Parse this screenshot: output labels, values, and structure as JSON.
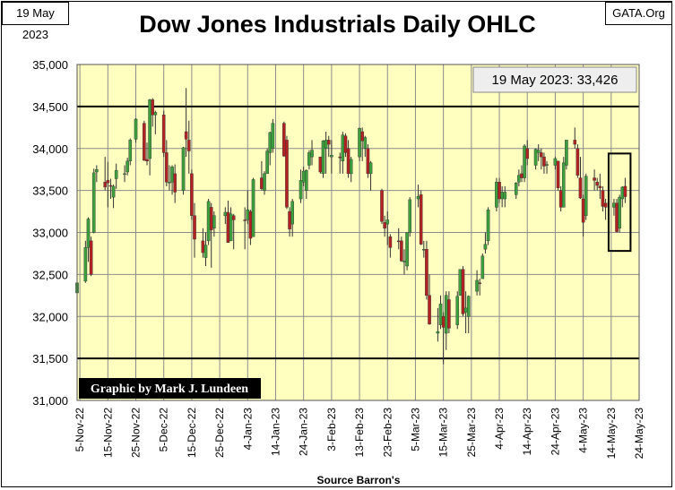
{
  "header": {
    "date_label": "19 May 2023",
    "site_label": "GATA.Org",
    "title": "Dow Jones Industrials Daily OHLC"
  },
  "chart_data": {
    "type": "ohlc",
    "title": "Dow Jones Industrials Daily OHLC",
    "xlabel": "Source Barron's",
    "ylabel": "",
    "ylim": [
      31000,
      35000
    ],
    "y_ticks": [
      31000,
      31500,
      32000,
      32500,
      33000,
      33500,
      34000,
      34500,
      35000
    ],
    "y_tick_labels": [
      "31,000",
      "31,500",
      "32,000",
      "32,500",
      "33,000",
      "33,500",
      "34,000",
      "34,500",
      "35,000"
    ],
    "x_ticks": [
      "5-Nov-22",
      "15-Nov-22",
      "25-Nov-22",
      "5-Dec-22",
      "15-Dec-22",
      "25-Dec-22",
      "4-Jan-23",
      "14-Jan-23",
      "24-Jan-23",
      "3-Feb-23",
      "13-Feb-23",
      "23-Feb-23",
      "5-Mar-23",
      "15-Mar-23",
      "25-Mar-23",
      "4-Apr-23",
      "14-Apr-23",
      "24-Apr-23",
      "4-May-23",
      "14-May-23",
      "24-May-23"
    ],
    "x_start": "2022-11-04",
    "x_end": "2023-05-24",
    "grid": true,
    "colors": {
      "up": "#3c9e3c",
      "down": "#b22222",
      "background": "#ffffc0",
      "grid": "#8c8c8c",
      "reference": "#000000"
    },
    "reference_lines": [
      34500,
      31500
    ],
    "annotation": {
      "text": "19 May 2023:  33,426",
      "position": "top-right"
    },
    "credit": "Graphic by Mark J. Lundeen",
    "highlight_range": {
      "start": "2023-05-15",
      "end": "2023-05-19",
      "low": 32780,
      "high": 33940
    },
    "candles": [
      {
        "d": "2022-11-04",
        "o": 32280,
        "h": 32500,
        "l": 32150,
        "c": 32400
      },
      {
        "d": "2022-11-07",
        "o": 32420,
        "h": 32900,
        "l": 32400,
        "c": 32820
      },
      {
        "d": "2022-11-08",
        "o": 32820,
        "h": 33180,
        "l": 32650,
        "c": 33160
      },
      {
        "d": "2022-11-09",
        "o": 32900,
        "h": 32950,
        "l": 32480,
        "c": 32500
      },
      {
        "d": "2022-11-10",
        "o": 33000,
        "h": 33760,
        "l": 32990,
        "c": 33710
      },
      {
        "d": "2022-11-11",
        "o": 33720,
        "h": 33800,
        "l": 33600,
        "c": 33750
      },
      {
        "d": "2022-11-14",
        "o": 33600,
        "h": 33900,
        "l": 33500,
        "c": 33540
      },
      {
        "d": "2022-11-15",
        "o": 33620,
        "h": 33840,
        "l": 33300,
        "c": 33590
      },
      {
        "d": "2022-11-16",
        "o": 33560,
        "h": 33640,
        "l": 33400,
        "c": 33550
      },
      {
        "d": "2022-11-17",
        "o": 33420,
        "h": 33570,
        "l": 33290,
        "c": 33550
      },
      {
        "d": "2022-11-18",
        "o": 33640,
        "h": 33820,
        "l": 33520,
        "c": 33740
      },
      {
        "d": "2022-11-21",
        "o": 33700,
        "h": 33800,
        "l": 33600,
        "c": 33700
      },
      {
        "d": "2022-11-22",
        "o": 33720,
        "h": 33890,
        "l": 33680,
        "c": 33850
      },
      {
        "d": "2022-11-23",
        "o": 33850,
        "h": 34120,
        "l": 33800,
        "c": 34100
      },
      {
        "d": "2022-11-25",
        "o": 34110,
        "h": 34360,
        "l": 34070,
        "c": 34350
      },
      {
        "d": "2022-11-28",
        "o": 34300,
        "h": 34330,
        "l": 33850,
        "c": 33860
      },
      {
        "d": "2022-11-29",
        "o": 33870,
        "h": 34070,
        "l": 33800,
        "c": 33850
      },
      {
        "d": "2022-11-30",
        "o": 33880,
        "h": 34590,
        "l": 33680,
        "c": 34580
      },
      {
        "d": "2022-12-01",
        "o": 34580,
        "h": 34600,
        "l": 34260,
        "c": 34400
      },
      {
        "d": "2022-12-02",
        "o": 34400,
        "h": 34450,
        "l": 34170,
        "c": 34430
      },
      {
        "d": "2022-12-05",
        "o": 34400,
        "h": 34450,
        "l": 33900,
        "c": 33950
      },
      {
        "d": "2022-12-06",
        "o": 33950,
        "h": 34100,
        "l": 33550,
        "c": 33600
      },
      {
        "d": "2022-12-07",
        "o": 33600,
        "h": 33800,
        "l": 33500,
        "c": 33600
      },
      {
        "d": "2022-12-08",
        "o": 33600,
        "h": 33800,
        "l": 33450,
        "c": 33780
      },
      {
        "d": "2022-12-09",
        "o": 33700,
        "h": 33810,
        "l": 33350,
        "c": 33480
      },
      {
        "d": "2022-12-12",
        "o": 33500,
        "h": 34020,
        "l": 33450,
        "c": 34010
      },
      {
        "d": "2022-12-13",
        "o": 34200,
        "h": 34720,
        "l": 33900,
        "c": 34110
      },
      {
        "d": "2022-12-14",
        "o": 34100,
        "h": 34330,
        "l": 33700,
        "c": 33970
      },
      {
        "d": "2022-12-15",
        "o": 33700,
        "h": 33750,
        "l": 33150,
        "c": 33200
      },
      {
        "d": "2022-12-16",
        "o": 33200,
        "h": 33350,
        "l": 32700,
        "c": 32920
      },
      {
        "d": "2022-12-19",
        "o": 32900,
        "h": 33050,
        "l": 32700,
        "c": 32760
      },
      {
        "d": "2022-12-20",
        "o": 32700,
        "h": 33000,
        "l": 32600,
        "c": 32850
      },
      {
        "d": "2022-12-21",
        "o": 32900,
        "h": 33400,
        "l": 32850,
        "c": 33370
      },
      {
        "d": "2022-12-22",
        "o": 33300,
        "h": 33350,
        "l": 32580,
        "c": 33030
      },
      {
        "d": "2022-12-23",
        "o": 33050,
        "h": 33250,
        "l": 32950,
        "c": 33200
      },
      {
        "d": "2022-12-27",
        "o": 33200,
        "h": 33300,
        "l": 33100,
        "c": 33240
      },
      {
        "d": "2022-12-28",
        "o": 33240,
        "h": 33380,
        "l": 32880,
        "c": 32880
      },
      {
        "d": "2022-12-29",
        "o": 32900,
        "h": 33300,
        "l": 32900,
        "c": 33220
      },
      {
        "d": "2022-12-30",
        "o": 33200,
        "h": 33220,
        "l": 32800,
        "c": 33150
      },
      {
        "d": "2023-01-03",
        "o": 33150,
        "h": 33300,
        "l": 32800,
        "c": 33140
      },
      {
        "d": "2023-01-04",
        "o": 33150,
        "h": 33500,
        "l": 33100,
        "c": 33270
      },
      {
        "d": "2023-01-05",
        "o": 33250,
        "h": 33270,
        "l": 32850,
        "c": 32930
      },
      {
        "d": "2023-01-06",
        "o": 32950,
        "h": 33650,
        "l": 32950,
        "c": 33630
      },
      {
        "d": "2023-01-09",
        "o": 33650,
        "h": 33850,
        "l": 33500,
        "c": 33520
      },
      {
        "d": "2023-01-10",
        "o": 33500,
        "h": 33730,
        "l": 33450,
        "c": 33700
      },
      {
        "d": "2023-01-11",
        "o": 33700,
        "h": 34000,
        "l": 33700,
        "c": 33970
      },
      {
        "d": "2023-01-12",
        "o": 33950,
        "h": 34200,
        "l": 33800,
        "c": 34190
      },
      {
        "d": "2023-01-13",
        "o": 34000,
        "h": 34350,
        "l": 33950,
        "c": 34300
      },
      {
        "d": "2023-01-17",
        "o": 34300,
        "h": 34320,
        "l": 33900,
        "c": 33910
      },
      {
        "d": "2023-01-18",
        "o": 34100,
        "h": 34150,
        "l": 33280,
        "c": 33300
      },
      {
        "d": "2023-01-19",
        "o": 33250,
        "h": 33300,
        "l": 32950,
        "c": 33040
      },
      {
        "d": "2023-01-20",
        "o": 33100,
        "h": 33400,
        "l": 32950,
        "c": 33370
      },
      {
        "d": "2023-01-23",
        "o": 33400,
        "h": 33750,
        "l": 33350,
        "c": 33620
      },
      {
        "d": "2023-01-24",
        "o": 33600,
        "h": 33780,
        "l": 33550,
        "c": 33730
      },
      {
        "d": "2023-01-25",
        "o": 33500,
        "h": 33750,
        "l": 33400,
        "c": 33740
      },
      {
        "d": "2023-01-26",
        "o": 33800,
        "h": 33980,
        "l": 33750,
        "c": 33950
      },
      {
        "d": "2023-01-27",
        "o": 33900,
        "h": 34100,
        "l": 33800,
        "c": 33980
      },
      {
        "d": "2023-01-30",
        "o": 33900,
        "h": 33900,
        "l": 33700,
        "c": 33720
      },
      {
        "d": "2023-01-31",
        "o": 33700,
        "h": 34100,
        "l": 33650,
        "c": 34090
      },
      {
        "d": "2023-02-01",
        "o": 34000,
        "h": 34200,
        "l": 33700,
        "c": 34100
      },
      {
        "d": "2023-02-02",
        "o": 34100,
        "h": 34150,
        "l": 33900,
        "c": 34050
      },
      {
        "d": "2023-02-03",
        "o": 33900,
        "h": 34100,
        "l": 33700,
        "c": 33920
      },
      {
        "d": "2023-02-06",
        "o": 33900,
        "h": 33950,
        "l": 33700,
        "c": 33890
      },
      {
        "d": "2023-02-07",
        "o": 33850,
        "h": 34200,
        "l": 33700,
        "c": 34160
      },
      {
        "d": "2023-02-08",
        "o": 34150,
        "h": 34180,
        "l": 33900,
        "c": 33950
      },
      {
        "d": "2023-02-09",
        "o": 34000,
        "h": 34100,
        "l": 33650,
        "c": 33700
      },
      {
        "d": "2023-02-10",
        "o": 33700,
        "h": 33900,
        "l": 33600,
        "c": 33870
      },
      {
        "d": "2023-02-13",
        "o": 33900,
        "h": 34250,
        "l": 33850,
        "c": 34240
      },
      {
        "d": "2023-02-14",
        "o": 34200,
        "h": 34250,
        "l": 33850,
        "c": 34090
      },
      {
        "d": "2023-02-15",
        "o": 34000,
        "h": 34150,
        "l": 33900,
        "c": 34130
      },
      {
        "d": "2023-02-16",
        "o": 34000,
        "h": 34050,
        "l": 33650,
        "c": 33700
      },
      {
        "d": "2023-02-17",
        "o": 33700,
        "h": 33850,
        "l": 33500,
        "c": 33830
      },
      {
        "d": "2023-02-21",
        "o": 33500,
        "h": 33520,
        "l": 33100,
        "c": 33130
      },
      {
        "d": "2023-02-22",
        "o": 33120,
        "h": 33200,
        "l": 32950,
        "c": 33050
      },
      {
        "d": "2023-02-23",
        "o": 33100,
        "h": 33250,
        "l": 32850,
        "c": 33150
      },
      {
        "d": "2023-02-24",
        "o": 32950,
        "h": 32980,
        "l": 32700,
        "c": 32820
      },
      {
        "d": "2023-02-27",
        "o": 32900,
        "h": 33050,
        "l": 32800,
        "c": 32890
      },
      {
        "d": "2023-02-28",
        "o": 32900,
        "h": 32950,
        "l": 32650,
        "c": 32660
      },
      {
        "d": "2023-03-01",
        "o": 32650,
        "h": 32800,
        "l": 32500,
        "c": 32660
      },
      {
        "d": "2023-03-02",
        "o": 32600,
        "h": 33000,
        "l": 32550,
        "c": 33000
      },
      {
        "d": "2023-03-03",
        "o": 33000,
        "h": 33420,
        "l": 32950,
        "c": 33390
      },
      {
        "d": "2023-03-06",
        "o": 33400,
        "h": 33570,
        "l": 33300,
        "c": 33430
      },
      {
        "d": "2023-03-07",
        "o": 33450,
        "h": 33500,
        "l": 32850,
        "c": 32860
      },
      {
        "d": "2023-03-08",
        "o": 32800,
        "h": 32900,
        "l": 32700,
        "c": 32800
      },
      {
        "d": "2023-03-09",
        "o": 32800,
        "h": 32900,
        "l": 32200,
        "c": 32250
      },
      {
        "d": "2023-03-10",
        "o": 32250,
        "h": 32500,
        "l": 31900,
        "c": 31910
      },
      {
        "d": "2023-03-13",
        "o": 31800,
        "h": 32100,
        "l": 31700,
        "c": 31820
      },
      {
        "d": "2023-03-14",
        "o": 31900,
        "h": 32250,
        "l": 31850,
        "c": 32150
      },
      {
        "d": "2023-03-15",
        "o": 32000,
        "h": 32050,
        "l": 31430,
        "c": 31870
      },
      {
        "d": "2023-03-16",
        "o": 31800,
        "h": 32300,
        "l": 31600,
        "c": 32250
      },
      {
        "d": "2023-03-17",
        "o": 32200,
        "h": 32300,
        "l": 31800,
        "c": 31860
      },
      {
        "d": "2023-03-20",
        "o": 31900,
        "h": 32300,
        "l": 31850,
        "c": 32240
      },
      {
        "d": "2023-03-21",
        "o": 32250,
        "h": 32550,
        "l": 32250,
        "c": 32560
      },
      {
        "d": "2023-03-22",
        "o": 32560,
        "h": 32600,
        "l": 32000,
        "c": 32030
      },
      {
        "d": "2023-03-23",
        "o": 32050,
        "h": 32300,
        "l": 31800,
        "c": 32100
      },
      {
        "d": "2023-03-24",
        "o": 32000,
        "h": 32250,
        "l": 31800,
        "c": 32240
      },
      {
        "d": "2023-03-27",
        "o": 32300,
        "h": 32550,
        "l": 32250,
        "c": 32430
      },
      {
        "d": "2023-03-28",
        "o": 32400,
        "h": 32450,
        "l": 32250,
        "c": 32390
      },
      {
        "d": "2023-03-29",
        "o": 32450,
        "h": 32750,
        "l": 32450,
        "c": 32720
      },
      {
        "d": "2023-03-30",
        "o": 32800,
        "h": 33000,
        "l": 32750,
        "c": 32860
      },
      {
        "d": "2023-03-31",
        "o": 32900,
        "h": 33300,
        "l": 32850,
        "c": 33270
      },
      {
        "d": "2023-04-03",
        "o": 33300,
        "h": 33650,
        "l": 33250,
        "c": 33600
      },
      {
        "d": "2023-04-04",
        "o": 33600,
        "h": 33650,
        "l": 33350,
        "c": 33400
      },
      {
        "d": "2023-04-05",
        "o": 33400,
        "h": 33550,
        "l": 33300,
        "c": 33480
      },
      {
        "d": "2023-04-06",
        "o": 33400,
        "h": 33550,
        "l": 33300,
        "c": 33480
      },
      {
        "d": "2023-04-10",
        "o": 33450,
        "h": 33600,
        "l": 33400,
        "c": 33590
      },
      {
        "d": "2023-04-11",
        "o": 33600,
        "h": 33750,
        "l": 33550,
        "c": 33680
      },
      {
        "d": "2023-04-12",
        "o": 33700,
        "h": 33800,
        "l": 33600,
        "c": 33650
      },
      {
        "d": "2023-04-13",
        "o": 33650,
        "h": 34050,
        "l": 33600,
        "c": 34030
      },
      {
        "d": "2023-04-14",
        "o": 34000,
        "h": 34100,
        "l": 33800,
        "c": 33880
      },
      {
        "d": "2023-04-17",
        "o": 33800,
        "h": 34000,
        "l": 33750,
        "c": 33990
      },
      {
        "d": "2023-04-18",
        "o": 33950,
        "h": 34050,
        "l": 33850,
        "c": 33980
      },
      {
        "d": "2023-04-19",
        "o": 33950,
        "h": 34000,
        "l": 33750,
        "c": 33900
      },
      {
        "d": "2023-04-20",
        "o": 33900,
        "h": 33950,
        "l": 33700,
        "c": 33790
      },
      {
        "d": "2023-04-21",
        "o": 33800,
        "h": 33850,
        "l": 33700,
        "c": 33810
      },
      {
        "d": "2023-04-24",
        "o": 33800,
        "h": 33900,
        "l": 33750,
        "c": 33880
      },
      {
        "d": "2023-04-25",
        "o": 33850,
        "h": 33850,
        "l": 33500,
        "c": 33530
      },
      {
        "d": "2023-04-26",
        "o": 33500,
        "h": 33550,
        "l": 33250,
        "c": 33300
      },
      {
        "d": "2023-04-27",
        "o": 33300,
        "h": 33900,
        "l": 33300,
        "c": 33830
      },
      {
        "d": "2023-04-28",
        "o": 33800,
        "h": 34100,
        "l": 33750,
        "c": 34100
      },
      {
        "d": "2023-05-01",
        "o": 34100,
        "h": 34250,
        "l": 34000,
        "c": 34050
      },
      {
        "d": "2023-05-02",
        "o": 34000,
        "h": 34050,
        "l": 33650,
        "c": 33680
      },
      {
        "d": "2023-05-03",
        "o": 33650,
        "h": 33900,
        "l": 33400,
        "c": 33410
      },
      {
        "d": "2023-05-04",
        "o": 33400,
        "h": 33450,
        "l": 32950,
        "c": 33120
      },
      {
        "d": "2023-05-05",
        "o": 33200,
        "h": 33700,
        "l": 33150,
        "c": 33670
      },
      {
        "d": "2023-05-08",
        "o": 33650,
        "h": 33750,
        "l": 33500,
        "c": 33620
      },
      {
        "d": "2023-05-09",
        "o": 33600,
        "h": 33650,
        "l": 33500,
        "c": 33560
      },
      {
        "d": "2023-05-10",
        "o": 33550,
        "h": 33700,
        "l": 33400,
        "c": 33530
      },
      {
        "d": "2023-05-11",
        "o": 33500,
        "h": 33550,
        "l": 33250,
        "c": 33310
      },
      {
        "d": "2023-05-12",
        "o": 33350,
        "h": 33400,
        "l": 33150,
        "c": 33300
      },
      {
        "d": "2023-05-15",
        "o": 33300,
        "h": 33400,
        "l": 33200,
        "c": 33350
      },
      {
        "d": "2023-05-16",
        "o": 33350,
        "h": 33400,
        "l": 33000,
        "c": 33010
      },
      {
        "d": "2023-05-17",
        "o": 33050,
        "h": 33450,
        "l": 33000,
        "c": 33420
      },
      {
        "d": "2023-05-18",
        "o": 33400,
        "h": 33550,
        "l": 33300,
        "c": 33540
      },
      {
        "d": "2023-05-19",
        "o": 33550,
        "h": 33650,
        "l": 33350,
        "c": 33426
      }
    ]
  }
}
